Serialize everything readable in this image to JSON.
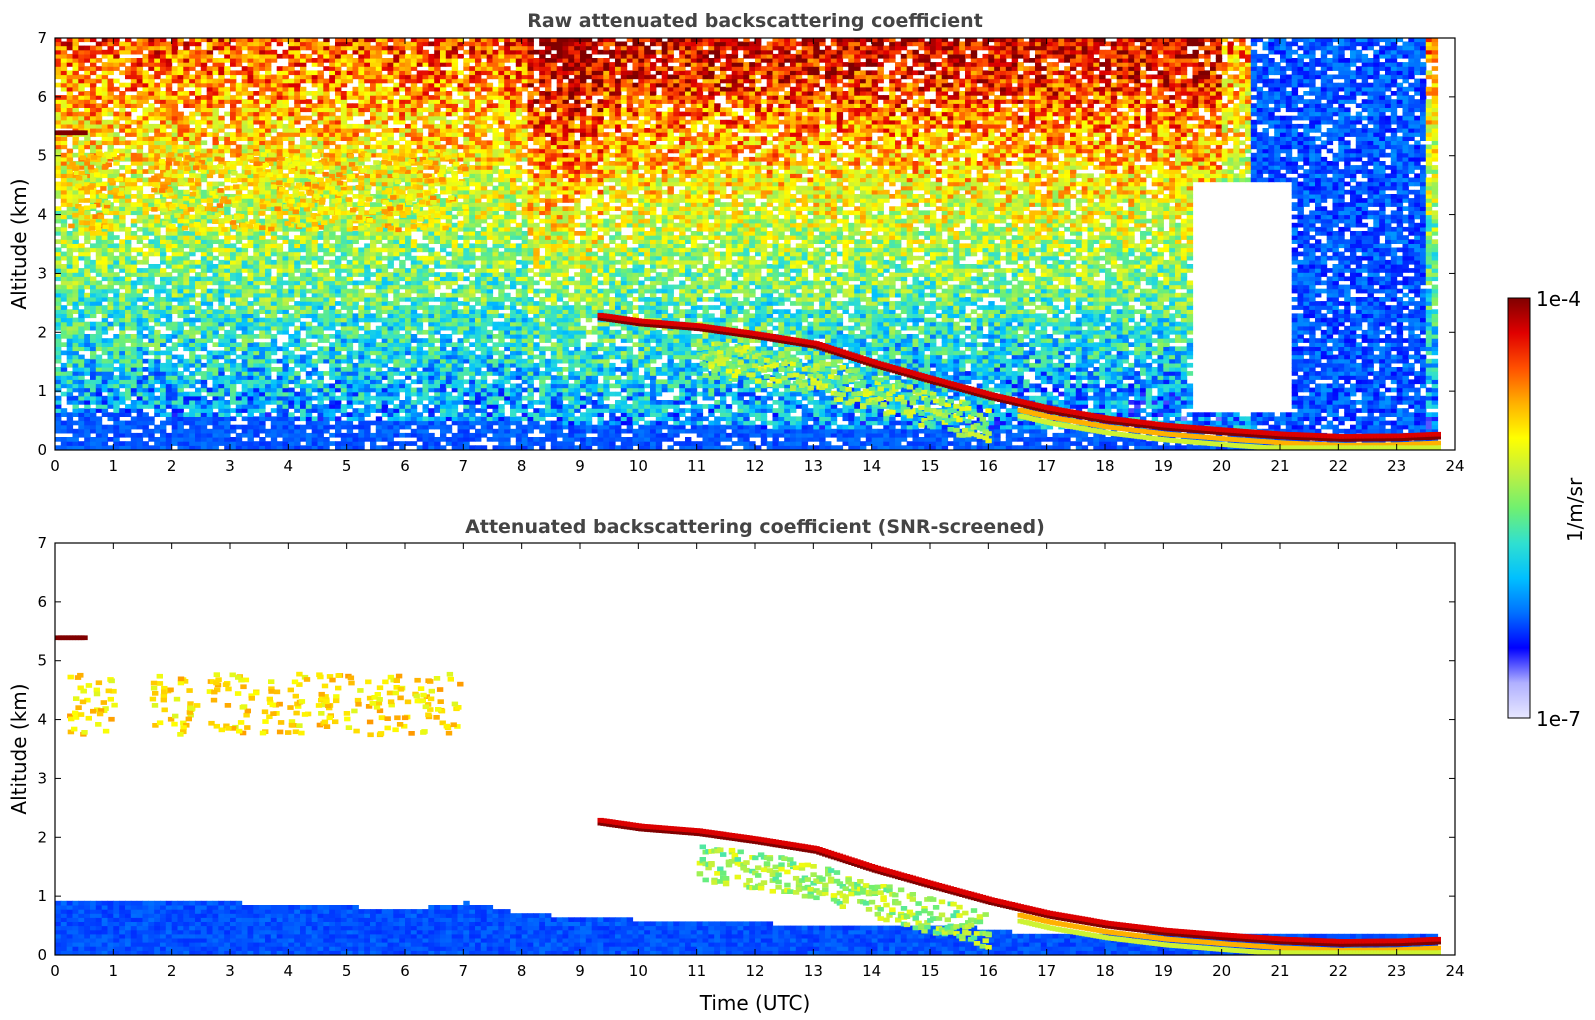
{
  "chart_data": [
    {
      "type": "heatmap",
      "title": "Raw attenuated backscattering coefficient",
      "xlabel": "",
      "ylabel": "Altitude (km)",
      "xlim": [
        0,
        24
      ],
      "ylim": [
        0,
        7
      ],
      "xticks": [
        "0",
        "1",
        "2",
        "3",
        "4",
        "5",
        "6",
        "7",
        "8",
        "9",
        "10",
        "11",
        "12",
        "13",
        "14",
        "15",
        "16",
        "17",
        "18",
        "19",
        "20",
        "21",
        "22",
        "23",
        "24"
      ],
      "yticks": [
        "0",
        "1",
        "2",
        "3",
        "4",
        "5",
        "6",
        "7"
      ],
      "colorscale": "jet",
      "features": {
        "aerosol_layer_top_km": [
          0.6,
          0.6,
          0.55,
          0.5,
          0.5,
          0.45,
          0.45,
          0.45,
          0.45,
          0.4,
          0.4,
          0.4,
          0.35,
          0.35,
          0.35,
          0.35,
          0.3,
          0.3,
          0.3,
          0.3
        ],
        "aerosol_layer_time_h": [
          0,
          1,
          2,
          3,
          4,
          5,
          6,
          7,
          8,
          9,
          10,
          11,
          12,
          13,
          14,
          15,
          16,
          16.5,
          17,
          23.7
        ],
        "cloud_base_time_h": [
          9.3,
          10,
          11,
          12,
          13,
          14,
          15,
          16,
          17,
          18,
          19,
          20,
          21,
          22,
          23,
          23.7
        ],
        "cloud_base_km": [
          2.2,
          2.1,
          2.02,
          1.88,
          1.72,
          1.4,
          1.12,
          0.85,
          0.62,
          0.45,
          0.33,
          0.25,
          0.18,
          0.14,
          0.15,
          0.18
        ],
        "elevated_layer_km": [
          5.35,
          5.5
        ],
        "elevated_layer_time_h": [
          0,
          0.45
        ],
        "cirrus_fallstreak_time_h": [
          0.2,
          1.6,
          2.6,
          3.5,
          4.4,
          5.3,
          6.1
        ],
        "cirrus_base_km": 3.7,
        "cirrus_top_km": 5.0
      }
    },
    {
      "type": "heatmap",
      "title": "Attenuated backscattering coefficient (SNR-screened)",
      "xlabel": "Time (UTC)",
      "ylabel": "Altitude (km)",
      "xlim": [
        0,
        24
      ],
      "ylim": [
        0,
        7
      ],
      "xticks": [
        "0",
        "1",
        "2",
        "3",
        "4",
        "5",
        "6",
        "7",
        "8",
        "9",
        "10",
        "11",
        "12",
        "13",
        "14",
        "15",
        "16",
        "17",
        "18",
        "19",
        "20",
        "21",
        "22",
        "23",
        "24"
      ],
      "yticks": [
        "0",
        "1",
        "2",
        "3",
        "4",
        "5",
        "6",
        "7"
      ],
      "colorscale": "jet",
      "features": {
        "boundary_layer_top_km": [
          0.85,
          0.9,
          0.88,
          0.85,
          0.8,
          0.78,
          0.72,
          0.85,
          0.65,
          0.6,
          0.55,
          0.5,
          0.5,
          0.45,
          0.45,
          0.45,
          0.4
        ],
        "boundary_layer_time_h": [
          0,
          1,
          2,
          3,
          4,
          5,
          6,
          7,
          8,
          9,
          10,
          11,
          12,
          13,
          14,
          15,
          16.3
        ]
      }
    }
  ],
  "colorbar": {
    "max_label": "1e-4",
    "min_label": "1e-7",
    "unit_label": "1/m/sr",
    "colors": [
      "#e8e8ff",
      "#b0b0ff",
      "#0000ff",
      "#0070ff",
      "#00c0ff",
      "#30e0d0",
      "#70f070",
      "#c0f040",
      "#ffff00",
      "#ffb000",
      "#ff5000",
      "#e00000",
      "#800000"
    ]
  }
}
